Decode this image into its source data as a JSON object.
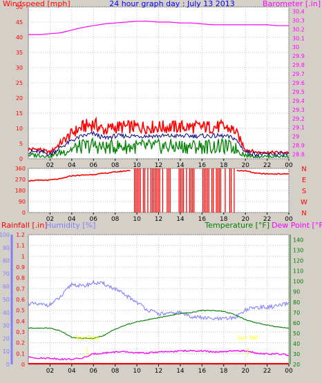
{
  "chart_data": [
    {
      "type": "line",
      "title": "24 hour graph day : July 13 2013",
      "left_axis_label": "Windspeed [mph]",
      "right_axis_label": "Barometer [.in]",
      "x_ticks": [
        "02",
        "04",
        "06",
        "08",
        "10",
        "12",
        "14",
        "16",
        "18",
        "20",
        "22",
        "00"
      ],
      "left_ticks": [
        "0",
        "5",
        "10",
        "15",
        "20",
        "25",
        "30",
        "35",
        "40",
        "45",
        "50"
      ],
      "left_ylim": [
        0,
        50
      ],
      "right_ticks": [
        "28.8",
        "28.9",
        "29",
        "29.1",
        "29.2",
        "29.3",
        "29.4",
        "29.5",
        "29.6",
        "29.7",
        "29.8",
        "29.9",
        "30",
        "30.1",
        "30.2",
        "30.3",
        "30.4"
      ],
      "right_ylim": [
        28.75,
        30.45
      ],
      "x_hours": [
        0,
        1,
        2,
        3,
        4,
        5,
        6,
        7,
        8,
        9,
        10,
        11,
        12,
        13,
        14,
        15,
        16,
        17,
        18,
        19,
        20,
        21,
        22,
        23,
        24
      ],
      "series": [
        {
          "name": "Windspeed",
          "axis": "left",
          "color": "#ff0000",
          "values": [
            3,
            3,
            2,
            5,
            8,
            10,
            11,
            9,
            10,
            10,
            10,
            10,
            10,
            10,
            10,
            10,
            10,
            10,
            10,
            9,
            3,
            2,
            2,
            2,
            2
          ]
        },
        {
          "name": "Barometer",
          "axis": "right",
          "color": "#ff00ff",
          "values": [
            30.14,
            30.14,
            30.15,
            30.16,
            30.19,
            30.22,
            30.24,
            30.26,
            30.27,
            30.28,
            30.29,
            30.29,
            30.28,
            30.28,
            30.27,
            30.27,
            30.26,
            30.25,
            30.25,
            30.25,
            30.25,
            30.25,
            30.25,
            30.24,
            30.24
          ]
        }
      ]
    },
    {
      "type": "line",
      "left_ticks": [
        "0",
        "90",
        "180",
        "270",
        "360"
      ],
      "left_ylim": [
        0,
        360
      ],
      "right_labels": [
        "N",
        "W",
        "S",
        "E",
        "N"
      ],
      "x_hours": [
        0,
        1,
        2,
        3,
        4,
        5,
        6,
        7,
        8,
        9,
        10,
        11,
        12,
        13,
        14,
        15,
        16,
        17,
        18,
        19,
        20,
        21,
        22,
        23,
        24
      ],
      "series": [
        {
          "name": "Wind Direction",
          "color": "#ff0000",
          "values": [
            260,
            262,
            265,
            275,
            300,
            305,
            310,
            320,
            330,
            340,
            350,
            0,
            355,
            0,
            350,
            0,
            355,
            0,
            350,
            345,
            340,
            320,
            315,
            315,
            315
          ]
        }
      ]
    },
    {
      "type": "line",
      "left_axis_label_1": "Rainfall [.in]",
      "left_axis_label_2": "Humidity [%]",
      "right_axis_label_1": "Temperature [°F]",
      "right_axis_label_2": "Dew Point [°F]",
      "humidity_ticks": [
        "0",
        "10",
        "20",
        "30",
        "40",
        "50",
        "60",
        "70",
        "80",
        "90",
        "100"
      ],
      "humidity_ylim": [
        0,
        100
      ],
      "rain_ticks": [
        "0",
        "0.1",
        "0.2",
        "0.3",
        "0.4",
        "0.5",
        "0.6",
        "0.7",
        "0.8",
        "0.9",
        "1",
        "1.1",
        "1.2"
      ],
      "rain_ylim": [
        0,
        1.2
      ],
      "temp_ticks": [
        "20",
        "30",
        "40",
        "50",
        "60",
        "70",
        "80",
        "90",
        "100",
        "110",
        "120",
        "130",
        "140"
      ],
      "temp_ylim": [
        20,
        145
      ],
      "annotations": [
        {
          "text": "Sun Rise",
          "hour": 5.4
        },
        {
          "text": "Sun Set",
          "hour": 20.2
        }
      ],
      "x_hours": [
        0,
        1,
        2,
        3,
        4,
        5,
        6,
        7,
        8,
        9,
        10,
        11,
        12,
        13,
        14,
        15,
        16,
        17,
        18,
        19,
        20,
        21,
        22,
        23,
        24
      ],
      "series": [
        {
          "name": "Humidity",
          "axis": "humidity",
          "color": "#8080ff",
          "values": [
            47,
            46,
            46,
            52,
            62,
            60,
            63,
            62,
            58,
            53,
            48,
            42,
            39,
            39,
            40,
            37,
            36,
            35,
            35,
            36,
            42,
            44,
            44,
            45,
            47
          ]
        },
        {
          "name": "Temperature",
          "axis": "temp",
          "color": "#008000",
          "values": [
            55,
            55,
            55,
            52,
            46,
            45,
            45,
            48,
            54,
            58,
            61,
            63,
            65,
            67,
            69,
            70,
            72,
            72,
            71,
            68,
            63,
            60,
            58,
            56,
            55
          ]
        },
        {
          "name": "Dew Point",
          "axis": "temp",
          "color": "#ff00ff",
          "values": [
            27,
            26,
            26,
            25,
            25,
            26,
            30,
            31,
            32,
            32,
            31,
            31,
            32,
            32,
            33,
            33,
            33,
            32,
            32,
            33,
            33,
            31,
            30,
            30,
            29
          ]
        },
        {
          "name": "Rainfall",
          "axis": "rain",
          "color": "#ff0000",
          "values": [
            0,
            0,
            0,
            0,
            0,
            0,
            0,
            0,
            0,
            0,
            0,
            0,
            0,
            0,
            0,
            0,
            0,
            0,
            0,
            0,
            0,
            0,
            0,
            0,
            0
          ]
        }
      ]
    }
  ]
}
